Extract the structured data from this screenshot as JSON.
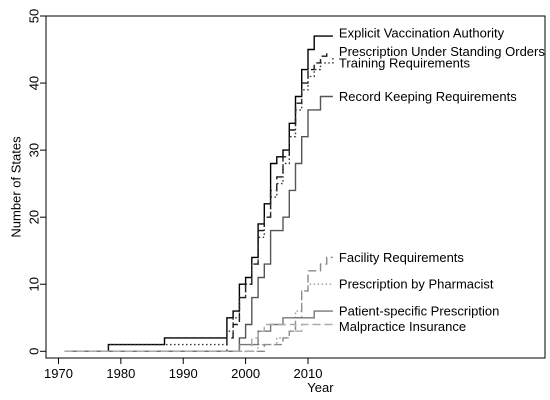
{
  "chart_data": {
    "type": "line",
    "xlabel": "Year",
    "ylabel": "Number of States",
    "xlim": [
      1968,
      2048
    ],
    "ylim": [
      -1,
      50
    ],
    "x_ticks": [
      1970,
      1980,
      1990,
      2000,
      2010
    ],
    "y_ticks": [
      0,
      10,
      20,
      30,
      40,
      50
    ],
    "grid": false,
    "legend": "inline labels at right end of each line",
    "series": [
      {
        "name": "Explicit Vaccination Authority",
        "color": "#000000",
        "dash": "solid",
        "x": [
          1971,
          1977,
          1978,
          1986,
          1987,
          1996,
          1997,
          1998,
          1999,
          2000,
          2001,
          2002,
          2003,
          2004,
          2005,
          2006,
          2007,
          2008,
          2009,
          2010,
          2011,
          2014
        ],
        "y": [
          0,
          0,
          1,
          1,
          2,
          2,
          5,
          6,
          10,
          11,
          14,
          19,
          22,
          28,
          29,
          30,
          34,
          38,
          42,
          45,
          47,
          47
        ]
      },
      {
        "name": "Prescription Under Standing Orders",
        "color": "#1a1a1a",
        "dash": "longdash",
        "x": [
          1971,
          1996,
          1997,
          1998,
          1999,
          2000,
          2001,
          2002,
          2003,
          2004,
          2005,
          2006,
          2007,
          2008,
          2009,
          2010,
          2011,
          2012,
          2013
        ],
        "y": [
          0,
          0,
          2,
          4,
          8,
          10,
          13,
          18,
          20,
          24,
          26,
          29,
          33,
          37,
          40,
          42,
          43,
          44,
          45
        ]
      },
      {
        "name": "Training Requirements",
        "color": "#333333",
        "dash": "dotted",
        "x": [
          1971,
          1977,
          1978,
          1996,
          1997,
          1998,
          1999,
          2000,
          2001,
          2002,
          2003,
          2004,
          2005,
          2006,
          2007,
          2008,
          2009,
          2010,
          2011,
          2012,
          2014
        ],
        "y": [
          0,
          0,
          1,
          1,
          3,
          5,
          8,
          10,
          13,
          17,
          20,
          23,
          25,
          28,
          32,
          36,
          39,
          41,
          42,
          43,
          44
        ]
      },
      {
        "name": "Record Keeping Requirements",
        "color": "#555555",
        "dash": "solid",
        "x": [
          1971,
          1998,
          1999,
          2000,
          2001,
          2002,
          2003,
          2004,
          2005,
          2006,
          2007,
          2008,
          2009,
          2010,
          2011,
          2012,
          2014
        ],
        "y": [
          0,
          0,
          2,
          4,
          8,
          11,
          13,
          18,
          18,
          20,
          24,
          28,
          32,
          36,
          36,
          38,
          38
        ]
      },
      {
        "name": "Facility Requirements",
        "color": "#888888",
        "dash": "longdash",
        "x": [
          1971,
          2002,
          2003,
          2005,
          2006,
          2007,
          2008,
          2009,
          2010,
          2011,
          2012,
          2013,
          2014
        ],
        "y": [
          0,
          0,
          1,
          1,
          2,
          3,
          5,
          9,
          12,
          12,
          13,
          14,
          14
        ]
      },
      {
        "name": "Prescription by Pharmacist",
        "color": "#999999",
        "dash": "dotted",
        "x": [
          1971,
          2001,
          2002,
          2004,
          2005,
          2006,
          2007,
          2008,
          2009,
          2010,
          2011,
          2014
        ],
        "y": [
          0,
          0,
          1,
          1,
          2,
          2,
          3,
          6,
          9,
          10,
          10,
          10
        ]
      },
      {
        "name": "Patient-specific Prescription",
        "color": "#777777",
        "dash": "solid",
        "x": [
          1971,
          1998,
          1999,
          2001,
          2002,
          2004,
          2005,
          2006,
          2007,
          2010,
          2011,
          2012,
          2014
        ],
        "y": [
          0,
          0,
          1,
          1,
          3,
          4,
          4,
          5,
          5,
          5,
          6,
          6,
          6
        ]
      },
      {
        "name": "Malpractice Insurance",
        "color": "#aaaaaa",
        "dash": "longdash",
        "x": [
          1971,
          2000,
          2001,
          2002,
          2003,
          2004,
          2005,
          2007,
          2008,
          2009,
          2010,
          2011,
          2014
        ],
        "y": [
          0,
          0,
          2,
          3,
          4,
          4,
          4,
          4,
          3,
          4,
          4,
          4,
          4
        ]
      }
    ]
  }
}
